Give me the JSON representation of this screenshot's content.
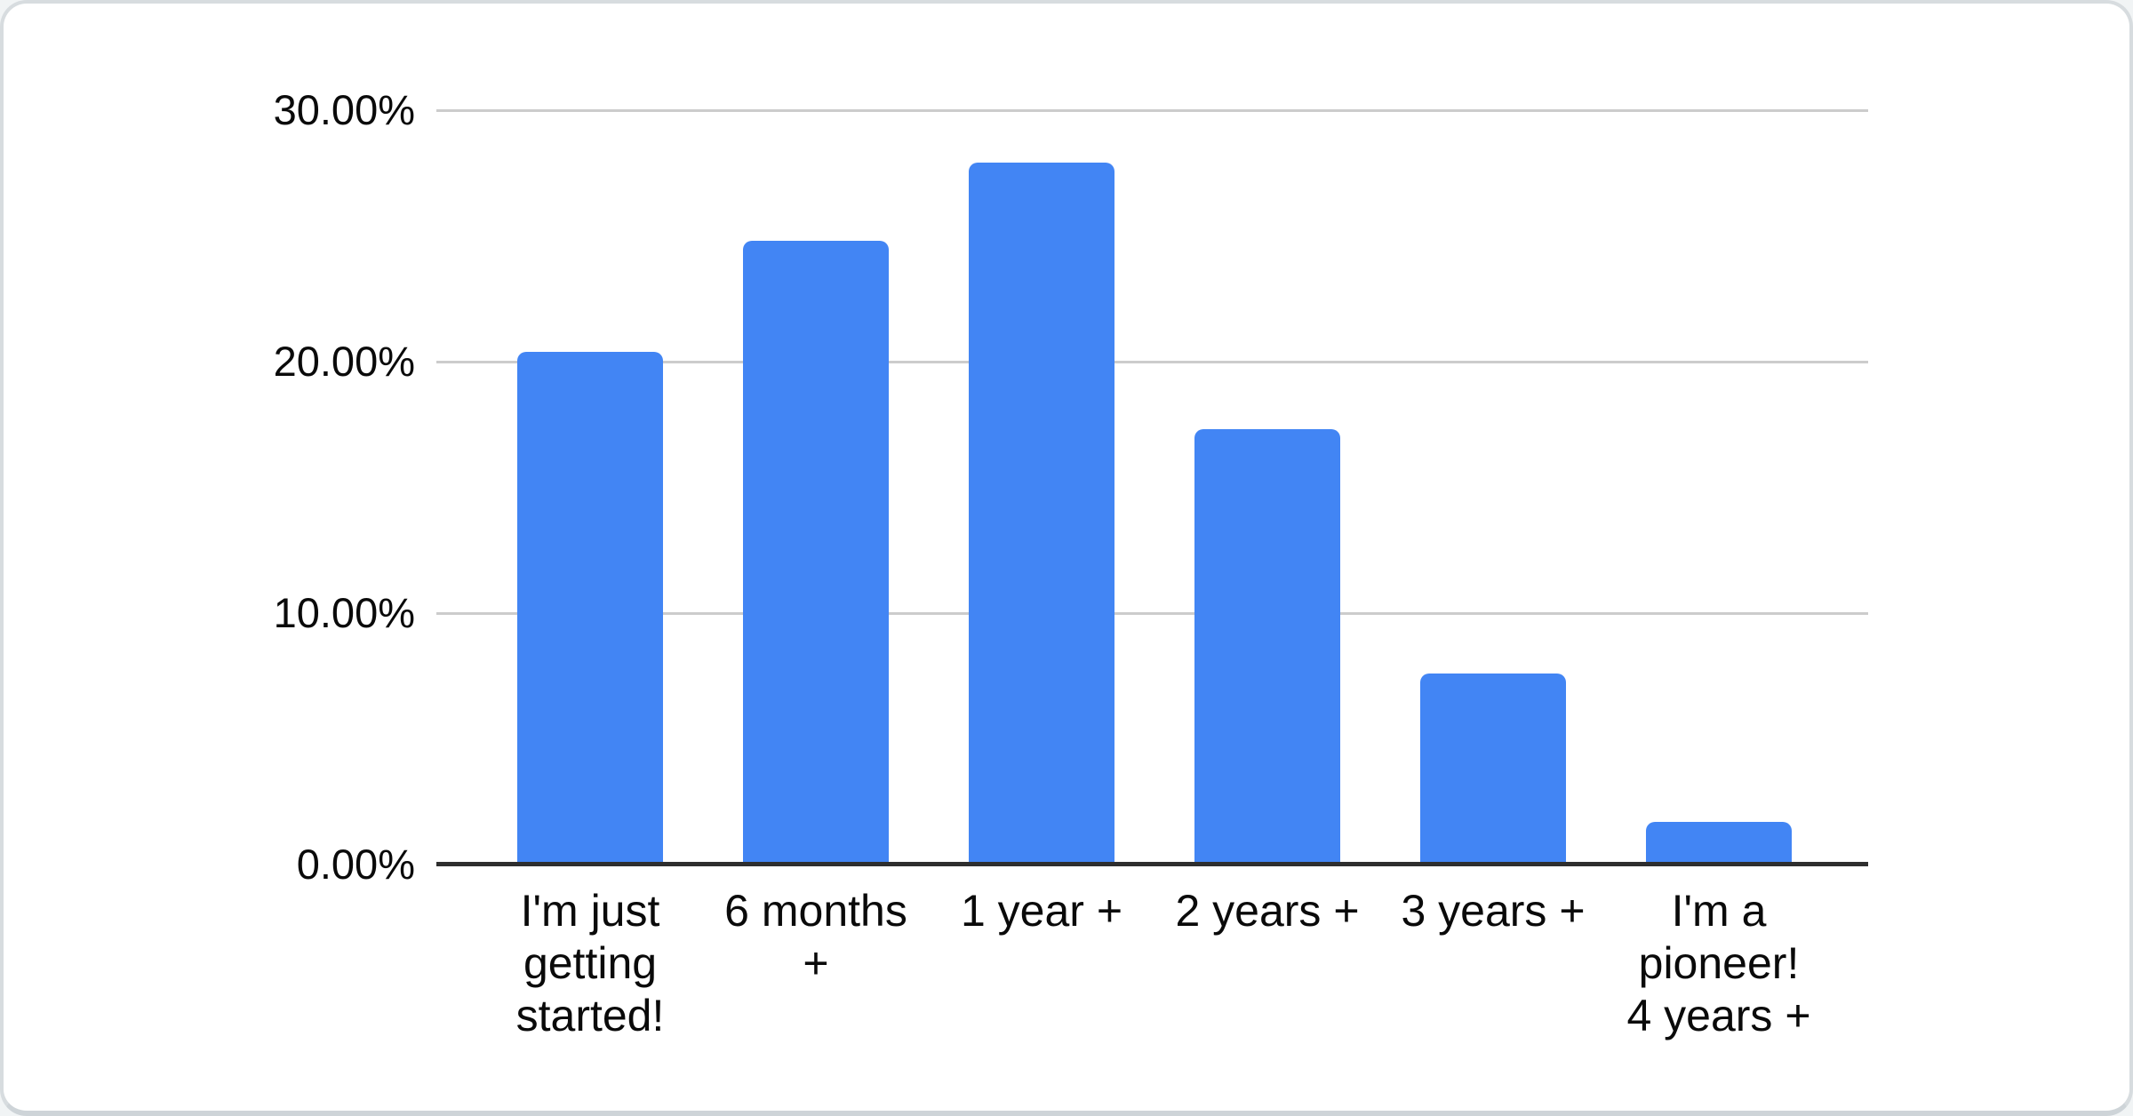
{
  "chart_data": {
    "type": "bar",
    "title": "",
    "xlabel": "",
    "ylabel": "",
    "categories": [
      "I'm just getting started!",
      "6 months +",
      "1 year +",
      "2 years +",
      "3 years +",
      "I'm a pioneer! 4 years +"
    ],
    "label_lines": [
      [
        "I'm just",
        "getting",
        "started!"
      ],
      [
        "6 months",
        "+"
      ],
      [
        "1 year +"
      ],
      [
        "2 years +"
      ],
      [
        "3 years +"
      ],
      [
        "I'm a",
        "pioneer!",
        "4 years +"
      ]
    ],
    "values": [
      20.4,
      24.8,
      27.9,
      17.3,
      7.6,
      1.7
    ],
    "value_unit": "%",
    "ylim": [
      0,
      30
    ],
    "y_tick_values": [
      0,
      10,
      20,
      30
    ],
    "y_ticks": [
      "0.00%",
      "10.00%",
      "20.00%",
      "30.00%"
    ],
    "grid": true,
    "legend": "none",
    "bar_color": "#4285f4",
    "gridline_color": "#cccccc",
    "baseline_color": "#2e2e2e",
    "axis_text_color": "#0a0a0a"
  }
}
